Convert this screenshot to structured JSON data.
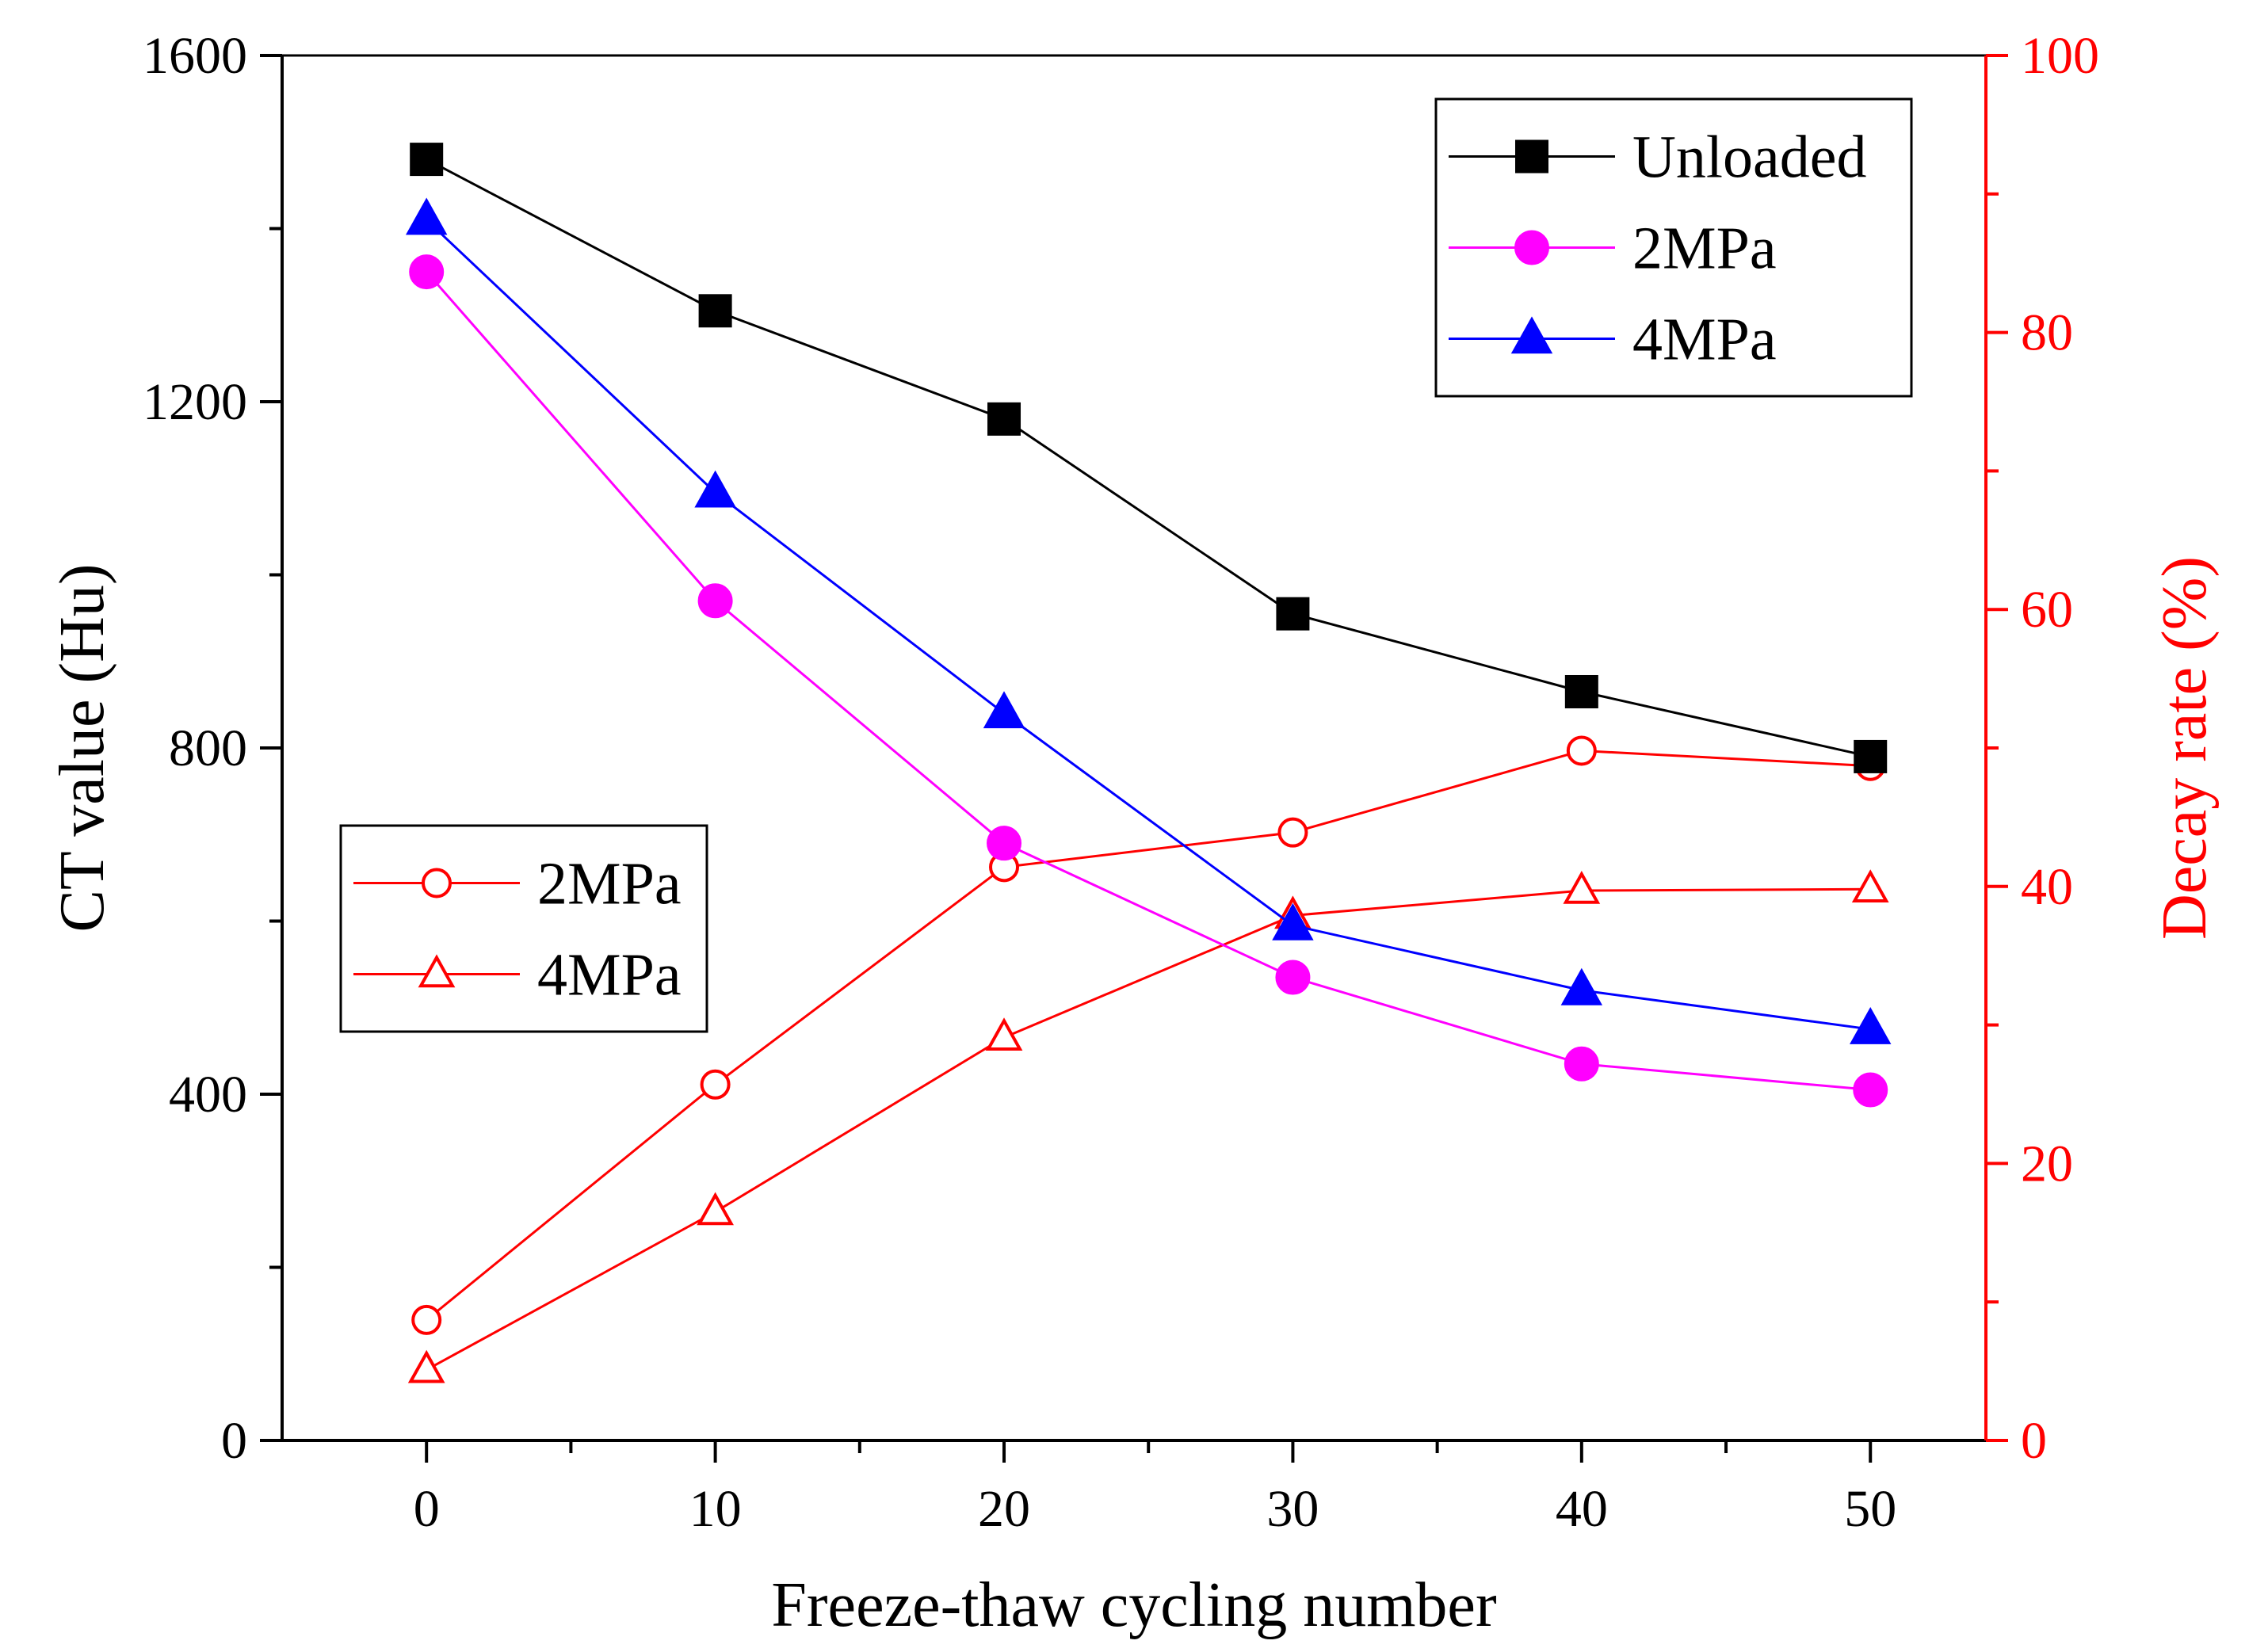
{
  "chart_data": {
    "type": "line",
    "xlabel": "Freeze-thaw cycling number",
    "ylabel_left": "CT value (Hu)",
    "ylabel_right": "Decay rate (%)",
    "x": [
      0,
      10,
      20,
      30,
      40,
      50
    ],
    "x_ticks": [
      "0",
      "10",
      "20",
      "30",
      "40",
      "50"
    ],
    "xlim": [
      -5,
      54
    ],
    "ylim_left": [
      0,
      1600
    ],
    "y_ticks_left": [
      "0",
      "400",
      "800",
      "1200",
      "1600"
    ],
    "ylim_right": [
      0,
      100
    ],
    "y_ticks_right": [
      "0",
      "20",
      "40",
      "60",
      "80",
      "100"
    ],
    "left_series": [
      {
        "name": "Unloaded",
        "color": "#000000",
        "marker": "square",
        "filled": true,
        "values": [
          1480,
          1305,
          1180,
          955,
          865,
          790
        ]
      },
      {
        "name": "2MPa",
        "color": "#ff00ff",
        "marker": "circle",
        "filled": true,
        "values": [
          1350,
          970,
          690,
          535,
          435,
          405
        ]
      },
      {
        "name": "4MPa",
        "color": "#0000ff",
        "marker": "triangle",
        "filled": true,
        "values": [
          1410,
          1095,
          840,
          595,
          520,
          475
        ]
      }
    ],
    "right_series": [
      {
        "name": "2MPa",
        "color": "#ff0000",
        "marker": "circle",
        "filled": false,
        "values": [
          8.7,
          25.7,
          41.4,
          43.9,
          49.8,
          48.7
        ]
      },
      {
        "name": "4MPa",
        "color": "#ff0000",
        "marker": "triangle",
        "filled": false,
        "values": [
          5.1,
          16.5,
          29.1,
          37.9,
          39.7,
          39.8
        ]
      }
    ],
    "legend_left_axis": "top-right",
    "legend_right_axis": "middle-left",
    "axis_colors": {
      "left": "#000000",
      "right": "#ff0000"
    }
  }
}
